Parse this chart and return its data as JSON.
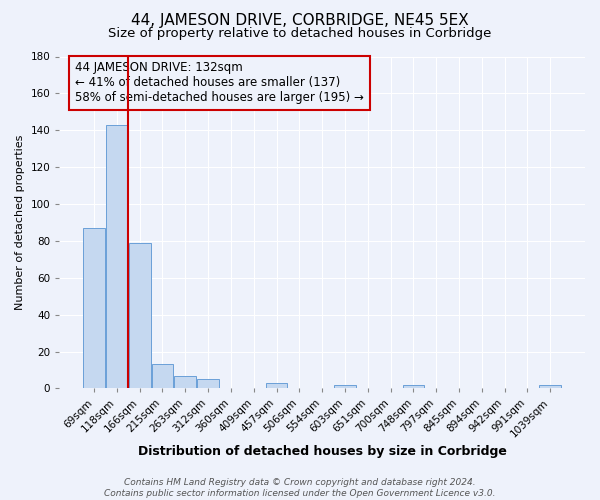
{
  "title": "44, JAMESON DRIVE, CORBRIDGE, NE45 5EX",
  "subtitle": "Size of property relative to detached houses in Corbridge",
  "xlabel": "Distribution of detached houses by size in Corbridge",
  "ylabel": "Number of detached properties",
  "bar_labels": [
    "69sqm",
    "118sqm",
    "166sqm",
    "215sqm",
    "263sqm",
    "312sqm",
    "360sqm",
    "409sqm",
    "457sqm",
    "506sqm",
    "554sqm",
    "603sqm",
    "651sqm",
    "700sqm",
    "748sqm",
    "797sqm",
    "845sqm",
    "894sqm",
    "942sqm",
    "991sqm",
    "1039sqm"
  ],
  "bar_values": [
    87,
    143,
    79,
    13,
    7,
    5,
    0,
    0,
    3,
    0,
    0,
    2,
    0,
    0,
    2,
    0,
    0,
    0,
    0,
    0,
    2
  ],
  "bar_color": "#c5d8f0",
  "bar_edge_color": "#6a9fd8",
  "vline_color": "#cc0000",
  "vline_x_pos": 1.5,
  "annotation_text_line1": "44 JAMESON DRIVE: 132sqm",
  "annotation_text_line2": "← 41% of detached houses are smaller (137)",
  "annotation_text_line3": "58% of semi-detached houses are larger (195) →",
  "annotation_box_color": "#cc0000",
  "ylim": [
    0,
    180
  ],
  "yticks": [
    0,
    20,
    40,
    60,
    80,
    100,
    120,
    140,
    160,
    180
  ],
  "footer_line1": "Contains HM Land Registry data © Crown copyright and database right 2024.",
  "footer_line2": "Contains public sector information licensed under the Open Government Licence v3.0.",
  "background_color": "#eef2fb",
  "grid_color": "#ffffff",
  "title_fontsize": 11,
  "subtitle_fontsize": 9.5,
  "xlabel_fontsize": 9,
  "ylabel_fontsize": 8,
  "tick_fontsize": 7.5,
  "annotation_fontsize": 8.5,
  "footer_fontsize": 6.5
}
